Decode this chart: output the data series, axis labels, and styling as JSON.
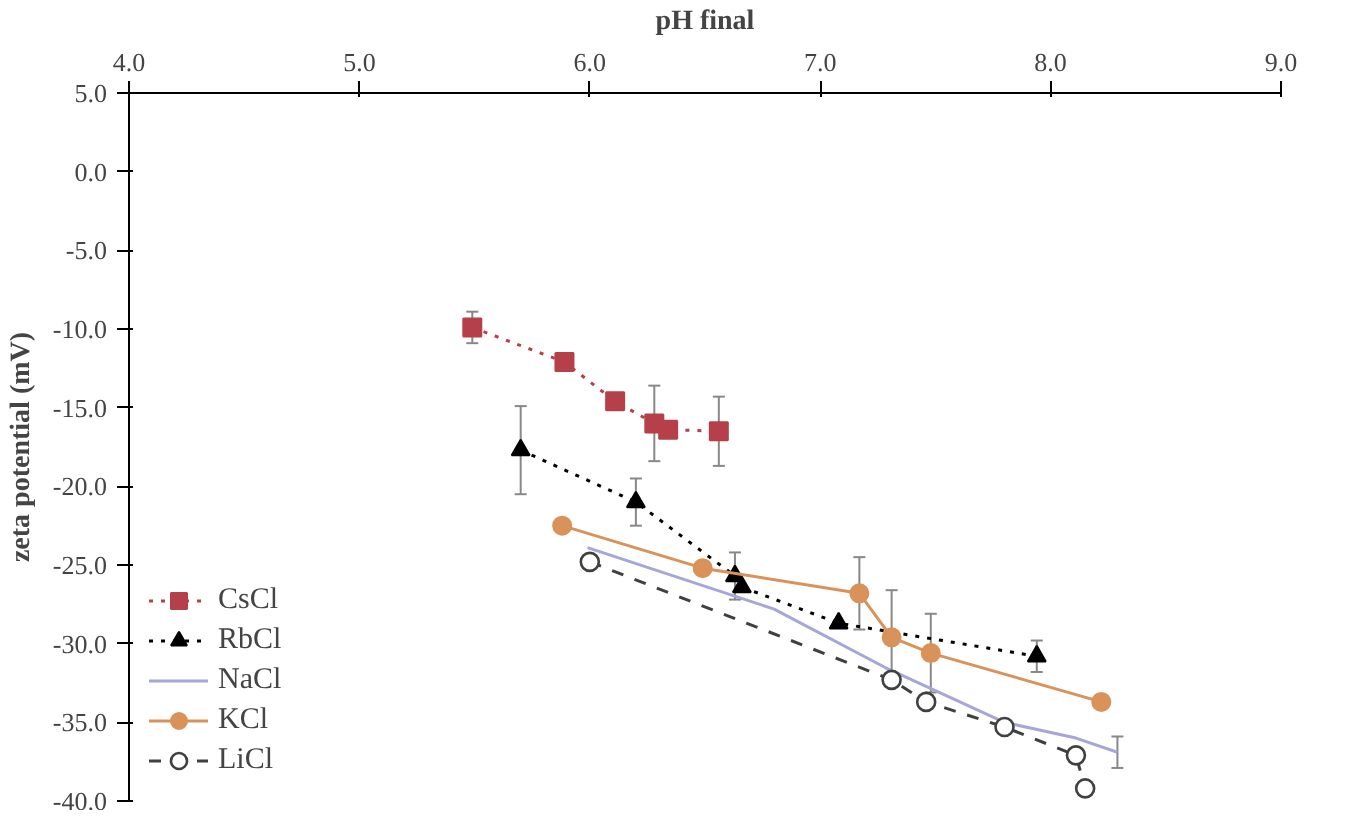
{
  "chart_data": {
    "type": "line",
    "xlabel": "pH final",
    "ylabel": "zeta potential (mV)",
    "xlim": [
      4,
      9
    ],
    "xticks": [
      {
        "value": 4,
        "label": "4.0"
      },
      {
        "value": 5,
        "label": "5.0"
      },
      {
        "value": 6,
        "label": "6.0"
      },
      {
        "value": 7,
        "label": "7.0"
      },
      {
        "value": 8,
        "label": "8.0"
      },
      {
        "value": 9,
        "label": "9.0"
      }
    ],
    "ylim": [
      -40,
      5
    ],
    "yticks": [
      {
        "value": 5,
        "label": "5.0"
      },
      {
        "value": 0,
        "label": "0.0"
      },
      {
        "value": -5,
        "label": "-5.0"
      },
      {
        "value": -10,
        "label": "-10.0"
      },
      {
        "value": -15,
        "label": "-15.0"
      },
      {
        "value": -20,
        "label": "-20.0"
      },
      {
        "value": -25,
        "label": "-25.0"
      },
      {
        "value": -30,
        "label": "-30.0"
      },
      {
        "value": -35,
        "label": "-35.0"
      },
      {
        "value": -40,
        "label": "-40.0"
      }
    ],
    "grid": false,
    "legend": "bottom left",
    "series": [
      {
        "name": "CsCl",
        "color": "#b5404a",
        "marker": "square",
        "line_style": "dotted",
        "x": [
          5.49,
          5.89,
          6.11,
          6.28,
          6.34,
          6.56
        ],
        "values": [
          -9.9,
          -12.1,
          -14.6,
          -16.0,
          -16.4,
          -16.5
        ],
        "errors": [
          1.0,
          null,
          null,
          2.4,
          null,
          2.2
        ]
      },
      {
        "name": "RbCl",
        "color": "#000000",
        "marker": "triangle",
        "line_style": "dotted",
        "x": [
          5.7,
          6.2,
          6.63,
          6.66,
          7.08,
          7.94
        ],
        "values": [
          -17.7,
          -21.0,
          -25.7,
          -26.4,
          -28.7,
          -30.8
        ],
        "errors": [
          2.8,
          1.5,
          1.5,
          null,
          null,
          1.0
        ]
      },
      {
        "name": "NaCl",
        "color": "#a6a6d8",
        "marker": "none",
        "line_style": "solid",
        "x": [
          5.99,
          6.8,
          7.28,
          7.8,
          8.11,
          8.29
        ],
        "values": [
          -23.9,
          -27.8,
          -31.5,
          -35.0,
          -36.0,
          -36.9
        ],
        "errors": [
          null,
          null,
          null,
          null,
          null,
          1.0
        ]
      },
      {
        "name": "KCl",
        "color": "#d9925a",
        "marker": "circle",
        "line_style": "solid",
        "x": [
          5.88,
          6.49,
          7.17,
          7.31,
          7.48,
          8.22
        ],
        "values": [
          -22.5,
          -25.2,
          -26.8,
          -29.6,
          -30.6,
          -33.7
        ],
        "errors": [
          null,
          null,
          2.3,
          3.0,
          2.5,
          null
        ]
      },
      {
        "name": "LiCl",
        "color": "#404040",
        "marker": "circle_open",
        "line_style": "dashed",
        "x": [
          6.0,
          7.31,
          7.46,
          7.8,
          8.11,
          8.15
        ],
        "values": [
          -24.8,
          -32.3,
          -33.7,
          -35.3,
          -37.1,
          -39.2
        ],
        "errors": [
          null,
          null,
          null,
          null,
          null,
          null
        ]
      }
    ]
  }
}
